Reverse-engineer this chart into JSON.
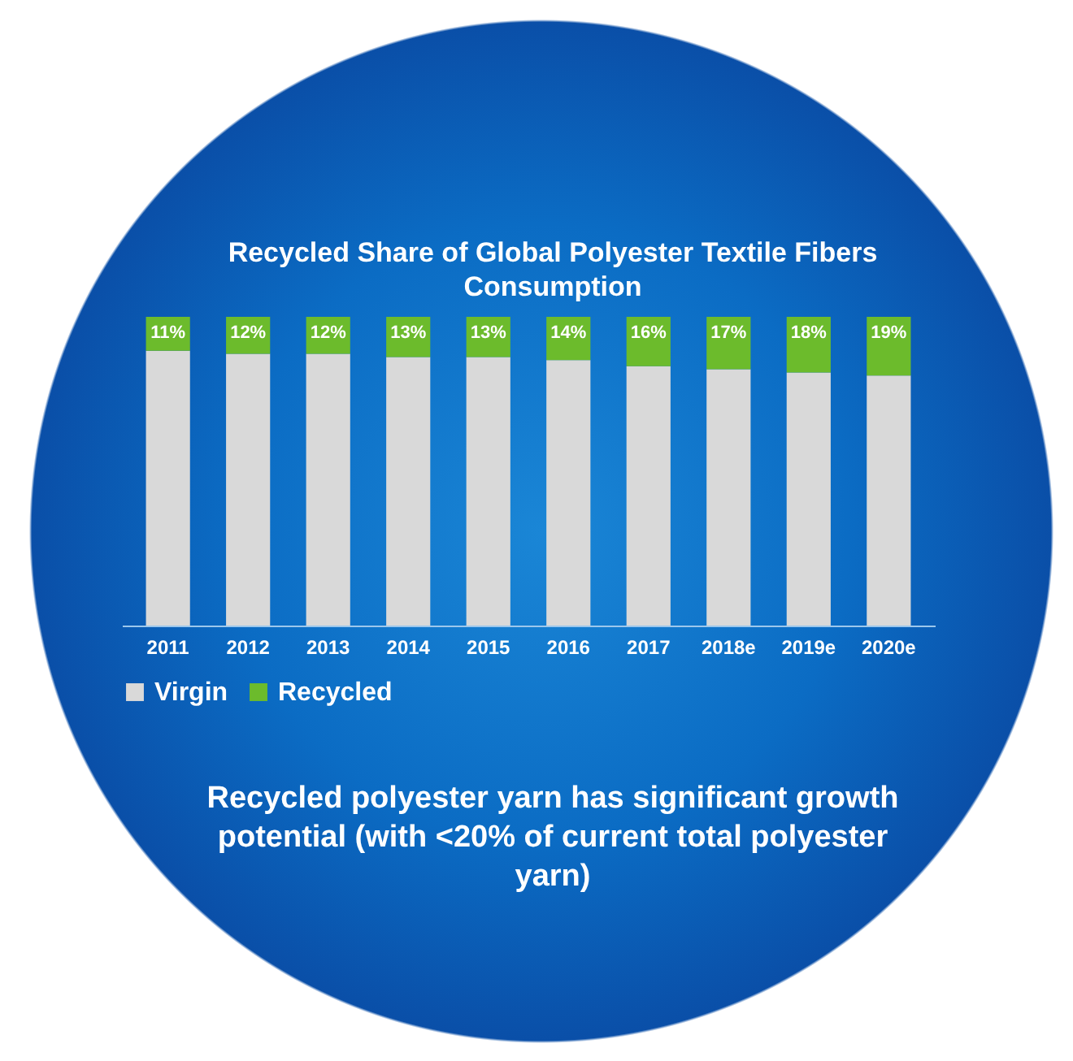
{
  "chart_data": {
    "type": "bar",
    "title": "Recycled Share of Global Polyester Textile Fibers Consumption",
    "categories": [
      "2011",
      "2012",
      "2013",
      "2014",
      "2015",
      "2016",
      "2017",
      "2018e",
      "2019e",
      "2020e"
    ],
    "stacked": true,
    "legend": "bottom",
    "series": [
      {
        "name": "Virgin",
        "color": "#d9d9d9",
        "values": [
          89,
          88,
          88,
          87,
          87,
          86,
          84,
          83,
          82,
          81
        ]
      },
      {
        "name": "Recycled",
        "color": "#6cbb2c",
        "values": [
          11,
          12,
          12,
          13,
          13,
          14,
          16,
          17,
          18,
          19
        ],
        "value_labels": [
          "11%",
          "12%",
          "12%",
          "13%",
          "13%",
          "14%",
          "16%",
          "17%",
          "18%",
          "19%"
        ]
      }
    ],
    "annotations": [
      "Recycled polyester yarn has significant growth potential (with <20% of current total polyester yarn)"
    ]
  }
}
